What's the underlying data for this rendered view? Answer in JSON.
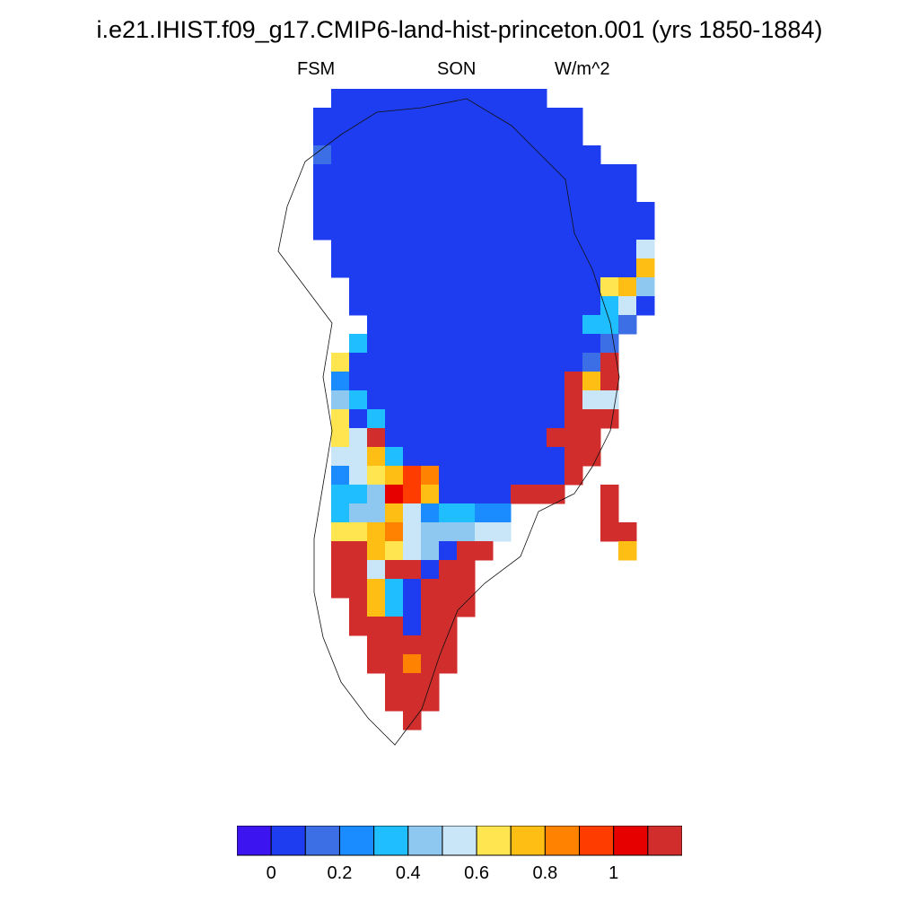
{
  "title": "i.e21.IHIST.f09_g17.CMIP6-land-hist-princeton.001 (yrs 1850-1884)",
  "left_label": "FSM",
  "center_label": "SON",
  "right_label": "W/m^2",
  "colorbar": {
    "colors": [
      "#3b14f0",
      "#1f3df0",
      "#3c6ee6",
      "#1a8cff",
      "#1ebeff",
      "#8ec8f0",
      "#c8e6f8",
      "#ffe650",
      "#ffbe14",
      "#ff8200",
      "#ff3c00",
      "#e60000",
      "#d22d2d"
    ],
    "tick_labels": [
      "0",
      "0.2",
      "0.4",
      "0.6",
      "0.8",
      "1"
    ]
  },
  "chart_data": {
    "type": "heatmap",
    "region": "Greenland",
    "variable": "FSM",
    "season": "SON",
    "units": "W/m^2",
    "color_levels": [
      0,
      0.1,
      0.2,
      0.3,
      0.4,
      0.5,
      0.6,
      0.7,
      0.8,
      0.9,
      1.0,
      1.1
    ],
    "grid_category_legend": "0=<0,1=0-0.1,2=0.1-0.2,3=0.2-0.3,4=0.3-0.4,5=0.4-0.5,6=0.5-0.6,7=0.6-0.7,8=0.7-0.8,9=0.8-0.9,10=0.9-1.0,11=1.0-1.1,12=>1.1",
    "grid_rows": [
      "......................",
      "......................",
      "......................",
      "......................",
      "....111111111111......",
      "...111111111111111....",
      "...111111111111111....",
      "...2111111111111111...",
      "...111111111111111111.",
      "...111111111111111111.",
      "...1111111111111111111",
      "...1111111111111111111",
      "....111111111111111116",
      "....111111111111111118",
      ".....11111111111111785",
      ".....11111111111111461",
      "......111111111111442.",
      ".....411111111111112..",
      "....711111111111112C..",
      "....3111111111111C8C..",
      "....5411111111111C66..",
      "....7141111111111CCC..",
      "....76C111111111CCC...",
      "....6684111111111CC...",
      "....3678A91111111C....",
      "....445BA81111CCC..C..",
      "....4558634433.....C..",
      "....7789655566.....CC.",
      "....CC87651CC.......8.",
      "....CC6CC1CC..........",
      "....CC841CCC..........",
      ".....C841CCC..........",
      ".....CCC1CC...........",
      "......CCCCC...........",
      "......CC9CC...........",
      ".......CCC............",
      ".......CCC............",
      "........C............."
    ],
    "xlabel": "",
    "ylabel": ""
  }
}
